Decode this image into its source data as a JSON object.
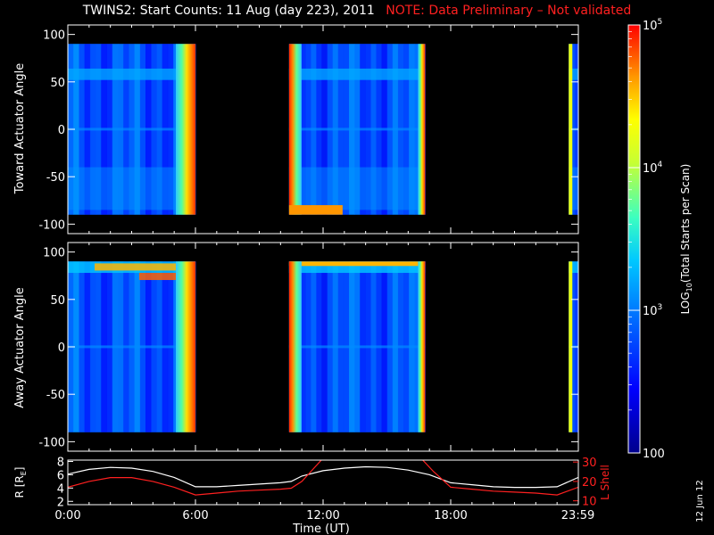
{
  "header": {
    "title": "TWINS2: Start Counts: 11 Aug (day 223), 2011",
    "note": "NOTE: Data Preliminary – Not validated"
  },
  "colors": {
    "background": "#000000",
    "axes": "#ffffff",
    "note": "#ff2020",
    "r_line": "#ffffff",
    "lshell_line": "#ff2020"
  },
  "chart_data": [
    {
      "type": "heatmap",
      "name": "toward",
      "ylabel": "Toward Actuator Angle",
      "ylim": [
        -110,
        110
      ],
      "yticks": [
        100,
        50,
        0,
        -50,
        -100
      ],
      "xlim": [
        0,
        24
      ],
      "data_range_y": [
        -90,
        90
      ],
      "data_intervals_hours": [
        [
          0,
          6.0
        ],
        [
          10.4,
          16.8
        ],
        [
          23.55,
          24
        ]
      ],
      "colorscale": "log",
      "features": [
        {
          "description": "elevated band",
          "y": 58,
          "intensity": "mid"
        },
        {
          "description": "high counts near interval ends",
          "x": [
            5.8,
            6.0
          ],
          "intensity": "high"
        },
        {
          "description": "high counts at start of second interval",
          "x": [
            10.4,
            10.7
          ],
          "intensity": "very-high"
        }
      ]
    },
    {
      "type": "heatmap",
      "name": "away",
      "ylabel": "Away Actuator Angle",
      "ylim": [
        -110,
        110
      ],
      "yticks": [
        100,
        50,
        0,
        -50,
        -100
      ],
      "xlim": [
        0,
        24
      ],
      "data_range_y": [
        -90,
        90
      ],
      "data_intervals_hours": [
        [
          0,
          6.0
        ],
        [
          10.4,
          16.8
        ],
        [
          23.55,
          24
        ]
      ],
      "colorscale": "log",
      "features": [
        {
          "description": "high counts near top edge",
          "y": 88,
          "intensity": "high"
        }
      ]
    },
    {
      "type": "line",
      "name": "orbit",
      "xlabel": "Time (UT)",
      "xlim": [
        0,
        24
      ],
      "xticks": [
        0,
        6,
        12,
        18,
        23.98
      ],
      "xticklabels": [
        "0:00",
        "6:00",
        "12:00",
        "18:00",
        "23:59"
      ],
      "left_axis": {
        "label": "R [RE]",
        "ylim": [
          1.5,
          8.2
        ],
        "yticks": [
          2,
          4,
          6,
          8
        ]
      },
      "right_axis": {
        "label": "L Shell",
        "ylim": [
          8,
          31
        ],
        "yticks": [
          10,
          20,
          30
        ]
      },
      "series": [
        {
          "name": "R",
          "axis": "left",
          "color": "#ffffff",
          "x": [
            0,
            1,
            2,
            3,
            4,
            5,
            6,
            7,
            8,
            9,
            10,
            10.5,
            11,
            12,
            13,
            14,
            15,
            16,
            17,
            18,
            19,
            20,
            21,
            22,
            23,
            24
          ],
          "y": [
            6.1,
            6.8,
            7.1,
            7.0,
            6.5,
            5.6,
            4.2,
            4.2,
            4.4,
            4.6,
            4.8,
            5.0,
            5.8,
            6.6,
            7.0,
            7.2,
            7.1,
            6.7,
            6.0,
            4.8,
            4.5,
            4.2,
            4.1,
            4.1,
            4.2,
            5.6
          ]
        },
        {
          "name": "L Shell",
          "axis": "right",
          "color": "#ff2020",
          "x": [
            0,
            1,
            2,
            3,
            4,
            5,
            6,
            7,
            8,
            9,
            10,
            10.5,
            11,
            11.5,
            12,
            16.6,
            17.2,
            18,
            19,
            20,
            21,
            22,
            23,
            24
          ],
          "y": [
            17,
            20,
            22,
            22,
            20,
            17,
            13,
            14,
            15,
            15.5,
            16,
            16.5,
            20,
            26,
            32,
            32,
            25,
            17,
            16,
            15,
            14.5,
            14,
            13,
            17
          ]
        }
      ]
    },
    {
      "type": "colorbar",
      "name": "counts-colorbar",
      "label": "LOG10(Total Starts per Scan)",
      "scale": "log",
      "range": [
        100,
        100000
      ],
      "ticks": [
        100,
        1000,
        10000,
        100000
      ],
      "ticklabels": [
        "100",
        "10",
        "10",
        "10"
      ],
      "tickexponents": [
        "",
        "3",
        "4",
        "5"
      ]
    }
  ],
  "labels": {
    "re_sub": "E",
    "log_base": "LOG",
    "log_sub": "10",
    "log_rest": "(Total Starts per Scan)",
    "date_stamp": "12 Jun 12"
  }
}
